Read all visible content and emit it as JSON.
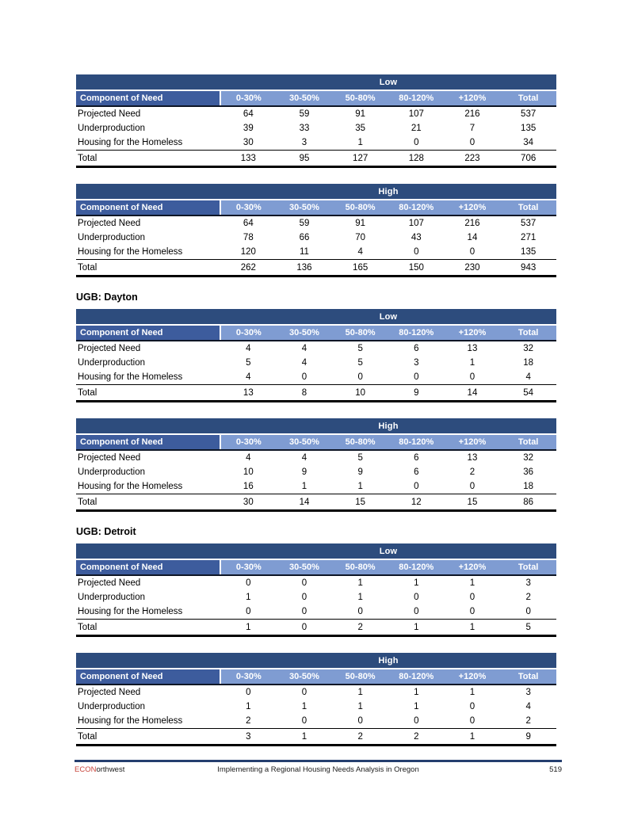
{
  "colors": {
    "band_dark": "#2D4C7D",
    "band_medium": "#3D5C9D",
    "band_light": "#7F9CD2",
    "footer_rule": "#243E6E",
    "brand_red": "#C8453C"
  },
  "sections": [
    {
      "tables": [
        {
          "scenario": "Low",
          "row_header_label": "Component of Need",
          "columns": [
            "0-30%",
            "30-50%",
            "50-80%",
            "80-120%",
            "+120%",
            "Total"
          ],
          "rows": [
            {
              "label": "Projected Need",
              "values": [
                64,
                59,
                91,
                107,
                216,
                537
              ]
            },
            {
              "label": "Underproduction",
              "values": [
                39,
                33,
                35,
                21,
                7,
                135
              ]
            },
            {
              "label": "Housing for the Homeless",
              "values": [
                30,
                3,
                1,
                0,
                0,
                34
              ]
            }
          ],
          "total": {
            "label": "Total",
            "values": [
              133,
              95,
              127,
              128,
              223,
              706
            ]
          }
        },
        {
          "scenario": "High",
          "row_header_label": "Component of Need",
          "columns": [
            "0-30%",
            "30-50%",
            "50-80%",
            "80-120%",
            "+120%",
            "Total"
          ],
          "rows": [
            {
              "label": "Projected Need",
              "values": [
                64,
                59,
                91,
                107,
                216,
                537
              ]
            },
            {
              "label": "Underproduction",
              "values": [
                78,
                66,
                70,
                43,
                14,
                271
              ]
            },
            {
              "label": "Housing for the Homeless",
              "values": [
                120,
                11,
                4,
                0,
                0,
                135
              ]
            }
          ],
          "total": {
            "label": "Total",
            "values": [
              262,
              136,
              165,
              150,
              230,
              943
            ]
          }
        }
      ]
    },
    {
      "heading": "UGB: Dayton",
      "tables": [
        {
          "scenario": "Low",
          "row_header_label": "Component of Need",
          "columns": [
            "0-30%",
            "30-50%",
            "50-80%",
            "80-120%",
            "+120%",
            "Total"
          ],
          "rows": [
            {
              "label": "Projected Need",
              "values": [
                4,
                4,
                5,
                6,
                13,
                32
              ]
            },
            {
              "label": "Underproduction",
              "values": [
                5,
                4,
                5,
                3,
                1,
                18
              ]
            },
            {
              "label": "Housing for the Homeless",
              "values": [
                4,
                0,
                0,
                0,
                0,
                4
              ]
            }
          ],
          "total": {
            "label": "Total",
            "values": [
              13,
              8,
              10,
              9,
              14,
              54
            ]
          }
        },
        {
          "scenario": "High",
          "row_header_label": "Component of Need",
          "columns": [
            "0-30%",
            "30-50%",
            "50-80%",
            "80-120%",
            "+120%",
            "Total"
          ],
          "rows": [
            {
              "label": "Projected Need",
              "values": [
                4,
                4,
                5,
                6,
                13,
                32
              ]
            },
            {
              "label": "Underproduction",
              "values": [
                10,
                9,
                9,
                6,
                2,
                36
              ]
            },
            {
              "label": "Housing for the Homeless",
              "values": [
                16,
                1,
                1,
                0,
                0,
                18
              ]
            }
          ],
          "total": {
            "label": "Total",
            "values": [
              30,
              14,
              15,
              12,
              15,
              86
            ]
          }
        }
      ]
    },
    {
      "heading": "UGB: Detroit",
      "tables": [
        {
          "scenario": "Low",
          "row_header_label": "Component of Need",
          "columns": [
            "0-30%",
            "30-50%",
            "50-80%",
            "80-120%",
            "+120%",
            "Total"
          ],
          "rows": [
            {
              "label": "Projected Need",
              "values": [
                0,
                0,
                1,
                1,
                1,
                3
              ]
            },
            {
              "label": "Underproduction",
              "values": [
                1,
                0,
                1,
                0,
                0,
                2
              ]
            },
            {
              "label": "Housing for the Homeless",
              "values": [
                0,
                0,
                0,
                0,
                0,
                0
              ]
            }
          ],
          "total": {
            "label": "Total",
            "values": [
              1,
              0,
              2,
              1,
              1,
              5
            ]
          }
        },
        {
          "scenario": "High",
          "row_header_label": "Component of Need",
          "columns": [
            "0-30%",
            "30-50%",
            "50-80%",
            "80-120%",
            "+120%",
            "Total"
          ],
          "rows": [
            {
              "label": "Projected Need",
              "values": [
                0,
                0,
                1,
                1,
                1,
                3
              ]
            },
            {
              "label": "Underproduction",
              "values": [
                1,
                1,
                1,
                1,
                0,
                4
              ]
            },
            {
              "label": "Housing for the Homeless",
              "values": [
                2,
                0,
                0,
                0,
                0,
                2
              ]
            }
          ],
          "total": {
            "label": "Total",
            "values": [
              3,
              1,
              2,
              2,
              1,
              9
            ]
          }
        }
      ]
    }
  ],
  "footer": {
    "brand_econ": "ECON",
    "brand_rest": "orthwest",
    "title": "Implementing a Regional Housing Needs Analysis in Oregon",
    "page_number": "519"
  }
}
